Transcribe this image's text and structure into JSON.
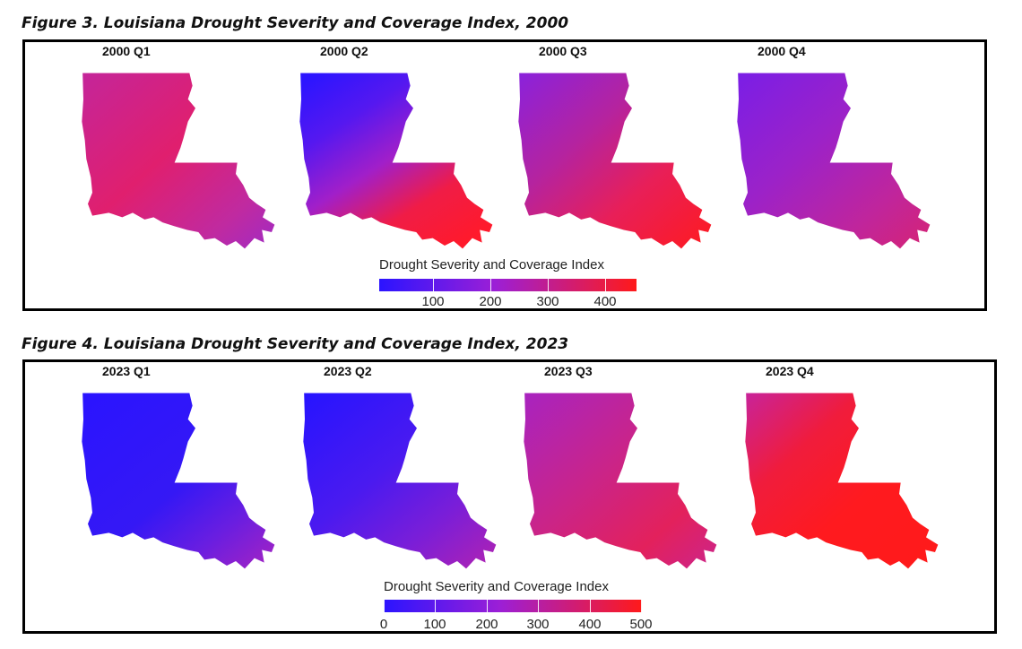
{
  "figures": [
    {
      "caption": "Figure 3.  Louisiana Drought Severity and Coverage Index, 2000",
      "quarters": [
        "2000 Q1",
        "2000 Q2",
        "2000 Q3",
        "2000 Q4"
      ],
      "legend": {
        "title": "Drought Severity and Coverage Index",
        "ticks": [
          "100",
          "200",
          "300",
          "400"
        ],
        "tick_values": [
          100,
          200,
          300,
          400
        ],
        "range": [
          0,
          450
        ]
      }
    },
    {
      "caption": "Figure 4.  Louisiana Drought Severity and Coverage Index, 2023",
      "quarters": [
        "2023 Q1",
        "2023 Q2",
        "2023 Q3",
        "2023 Q4"
      ],
      "legend": {
        "title": "Drought Severity and Coverage Index",
        "ticks": [
          "0",
          "100",
          "200",
          "300",
          "400",
          "500"
        ],
        "tick_values": [
          0,
          100,
          200,
          300,
          400,
          500
        ],
        "range": [
          0,
          500
        ]
      }
    }
  ],
  "colors": {
    "scale_low": "#2b14ff",
    "scale_mid": "#9c1fd6",
    "scale_high": "#ff1a1a",
    "panel_border": "#000000"
  }
}
